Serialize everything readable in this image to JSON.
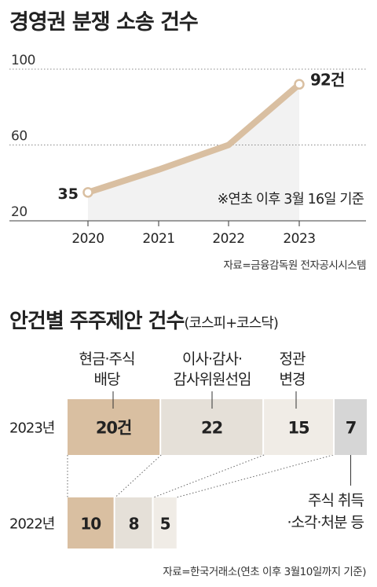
{
  "chart_data": [
    {
      "type": "line",
      "title": "경영권 분쟁 소송 건수",
      "x": [
        "2020",
        "2021",
        "2022",
        "2023"
      ],
      "series": [
        {
          "values": [
            35,
            47,
            60,
            92
          ]
        }
      ],
      "yticks": [
        "100",
        "60",
        "20"
      ],
      "ylim": [
        20,
        100
      ],
      "end_label": "92건",
      "start_label": "35",
      "annotation": "※연초 이후 3월 16일 기준",
      "source": "자료=금융감독원 전자공시시스템",
      "colors": {
        "line": "#d9bfa1",
        "area": "#f2f2f2",
        "grid": "#888888"
      }
    },
    {
      "type": "bar",
      "title": "안건별 주주제안 건수",
      "subtitle": "(코스피+코스닥)",
      "rows": [
        {
          "label": "2023년",
          "values": [
            20,
            22,
            15,
            7
          ],
          "value_labels": [
            "20건",
            "22",
            "15",
            "7"
          ]
        },
        {
          "label": "2022년",
          "values": [
            10,
            8,
            5
          ],
          "value_labels": [
            "10",
            "8",
            "5"
          ]
        }
      ],
      "categories": [
        {
          "lines": [
            "현금·주식",
            "배당"
          ],
          "color": "#d9bfa1"
        },
        {
          "lines": [
            "이사·감사·",
            "감사위원선임"
          ],
          "color": "#e5e0d8"
        },
        {
          "lines": [
            "정관",
            "변경"
          ],
          "color": "#f0ece6"
        },
        {
          "lines": [
            "주식 취득",
            "·소각·처분 등"
          ],
          "color": "#d6d6d6"
        }
      ],
      "source": "자료=한국거래소(연초 이후 3월10일까지 기준)"
    }
  ]
}
